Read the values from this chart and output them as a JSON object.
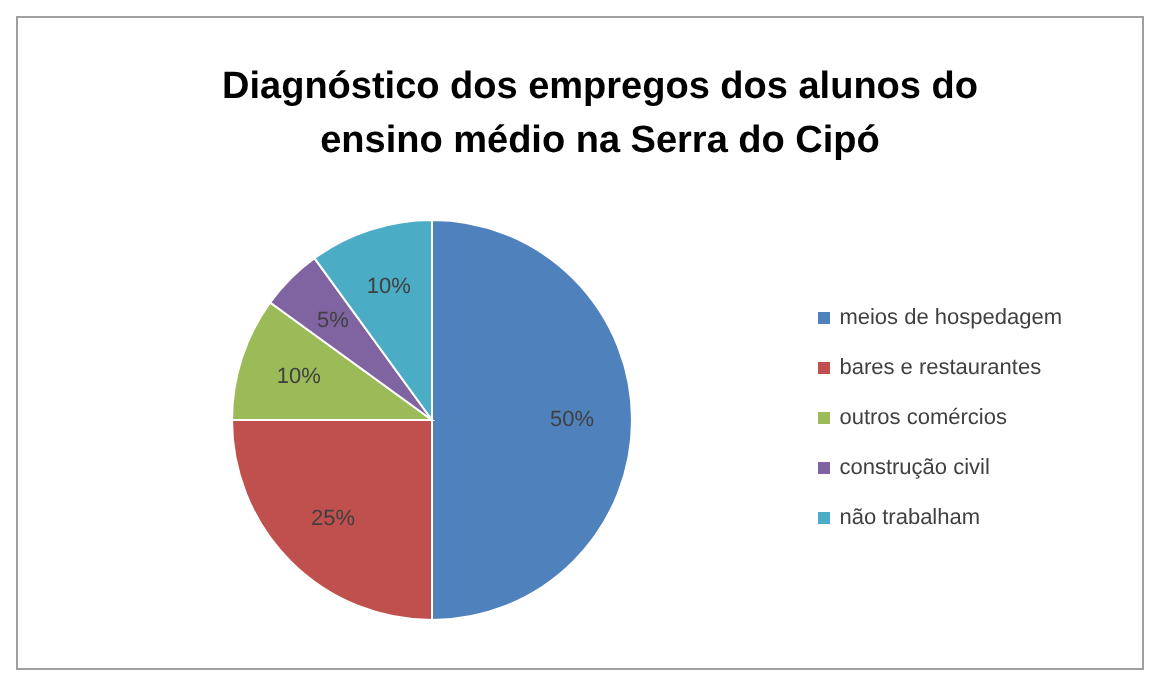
{
  "chart_data": {
    "type": "pie",
    "title": "Diagnóstico dos empregos dos alunos do ensino médio na Serra do Cipó",
    "categories": [
      "meios de hospedagem",
      "bares e restaurantes",
      "outros comércios",
      "construção civil",
      "não trabalham"
    ],
    "values": [
      50,
      25,
      10,
      5,
      10
    ],
    "colors": [
      "#4f81bd",
      "#c0504d",
      "#9bbb59",
      "#8064a2",
      "#4bacc6"
    ],
    "value_labels": [
      "50%",
      "25%",
      "10%",
      "5%",
      "10%"
    ],
    "legend": "right"
  }
}
